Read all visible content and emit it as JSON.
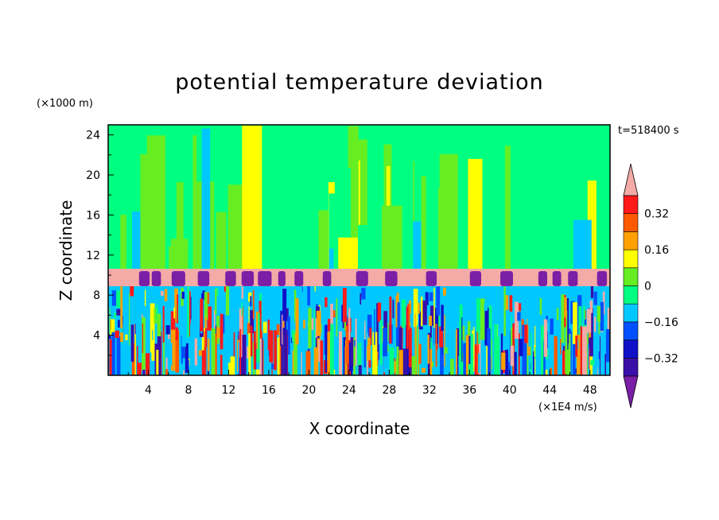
{
  "chart_data": {
    "type": "heatmap",
    "title": "potential temperature deviation",
    "xlabel": "X coordinate",
    "ylabel": "Z coordinate",
    "x_unit": "(×1E4 m/s)",
    "y_unit": "(×1000 m)",
    "time_label": "t=518400 s",
    "xlim": [
      0,
      50
    ],
    "ylim": [
      0,
      25
    ],
    "x_ticks": [
      4,
      8,
      12,
      16,
      20,
      24,
      28,
      32,
      36,
      40,
      44,
      48
    ],
    "y_ticks": [
      4,
      8,
      12,
      16,
      20,
      24
    ],
    "colorbar": {
      "levels": [
        -0.48,
        -0.4,
        -0.32,
        -0.24,
        -0.16,
        -0.08,
        0,
        0.08,
        0.16,
        0.24,
        0.32,
        0.4
      ],
      "colors": [
        "#7a1fa6",
        "#3a0fa8",
        "#1010c8",
        "#0050ff",
        "#00c8ff",
        "#00ff80",
        "#66ee22",
        "#ffff00",
        "#ffa000",
        "#ff5a00",
        "#ff1a1a",
        "#f4aaa6"
      ],
      "labels": [
        {
          "value": 0.32,
          "text": "0.32"
        },
        {
          "value": 0.16,
          "text": "0.16"
        },
        {
          "value": 0,
          "text": "0"
        },
        {
          "value": -0.16,
          "text": "−0.16"
        },
        {
          "value": -0.32,
          "text": "−0.32"
        }
      ]
    },
    "grid": false
  },
  "colors": {
    "upper_background": "#00ff80",
    "inversion_layer": "#f4aaa6",
    "cold_pockets": "#7a1fa6"
  }
}
